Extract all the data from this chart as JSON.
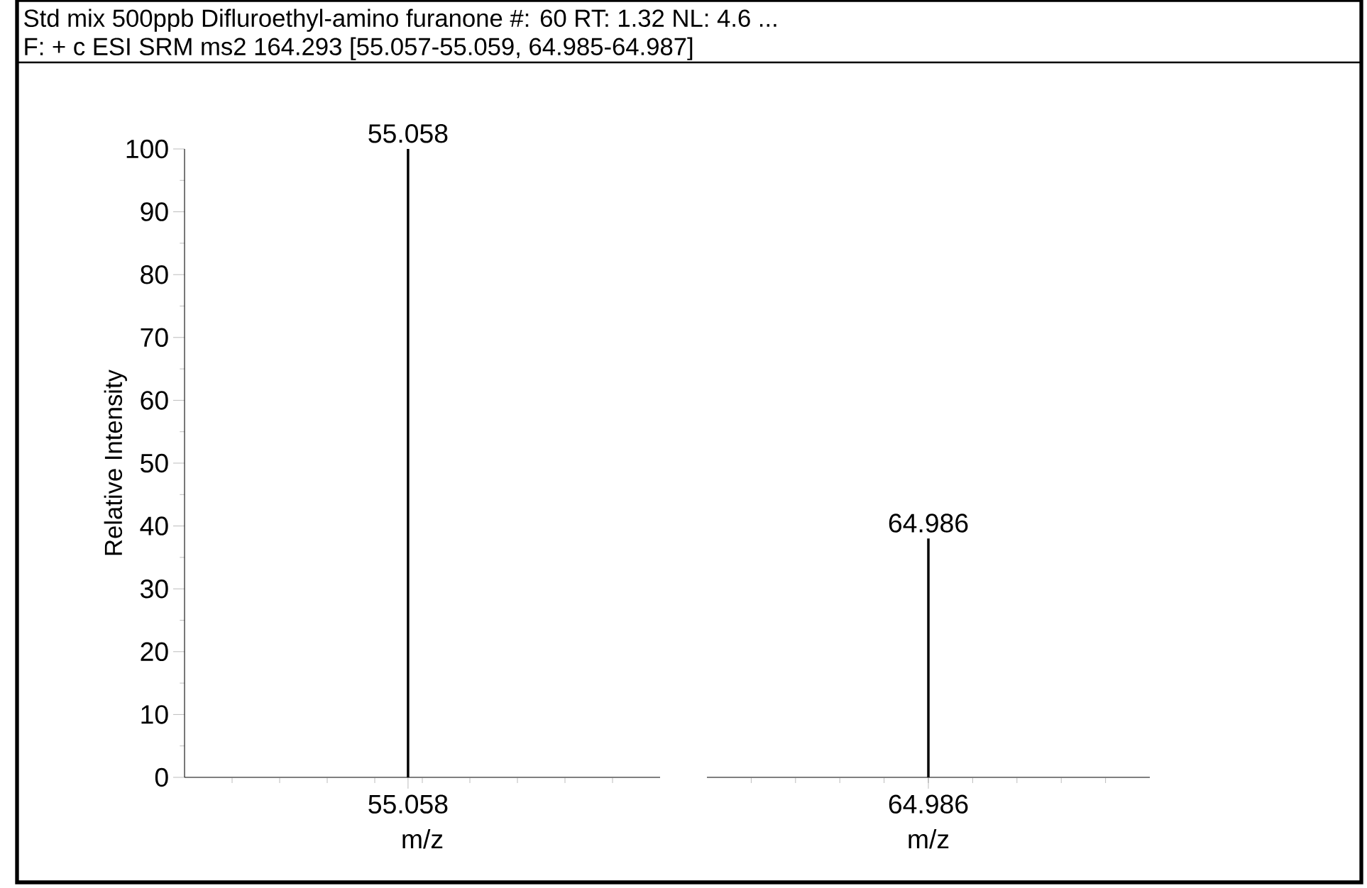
{
  "chart_data": [
    {
      "type": "bar",
      "title": "Std mix 500ppb  Difluroethyl-amino furanone  #: 60   RT: 1.32  NL: 4.6 ...",
      "subtitle": "F: + c ESI SRM ms2 164.293 [55.057-55.059, 64.985-64.987]",
      "xlabel": "m/z",
      "ylabel": "Relative Intensity",
      "categories": [
        "55.058"
      ],
      "values": [
        100
      ],
      "color": "#000000",
      "annotations": [
        "55.058"
      ],
      "ylim": [
        0,
        100
      ],
      "yticks": [
        0,
        10,
        20,
        30,
        40,
        50,
        60,
        70,
        80,
        90,
        100
      ]
    },
    {
      "type": "bar",
      "xlabel": "m/z",
      "categories": [
        "64.986"
      ],
      "values": [
        38
      ],
      "color": "#000000",
      "annotations": [
        "64.986"
      ],
      "ylim": [
        0,
        100
      ],
      "tick_labels": "x"
    }
  ]
}
